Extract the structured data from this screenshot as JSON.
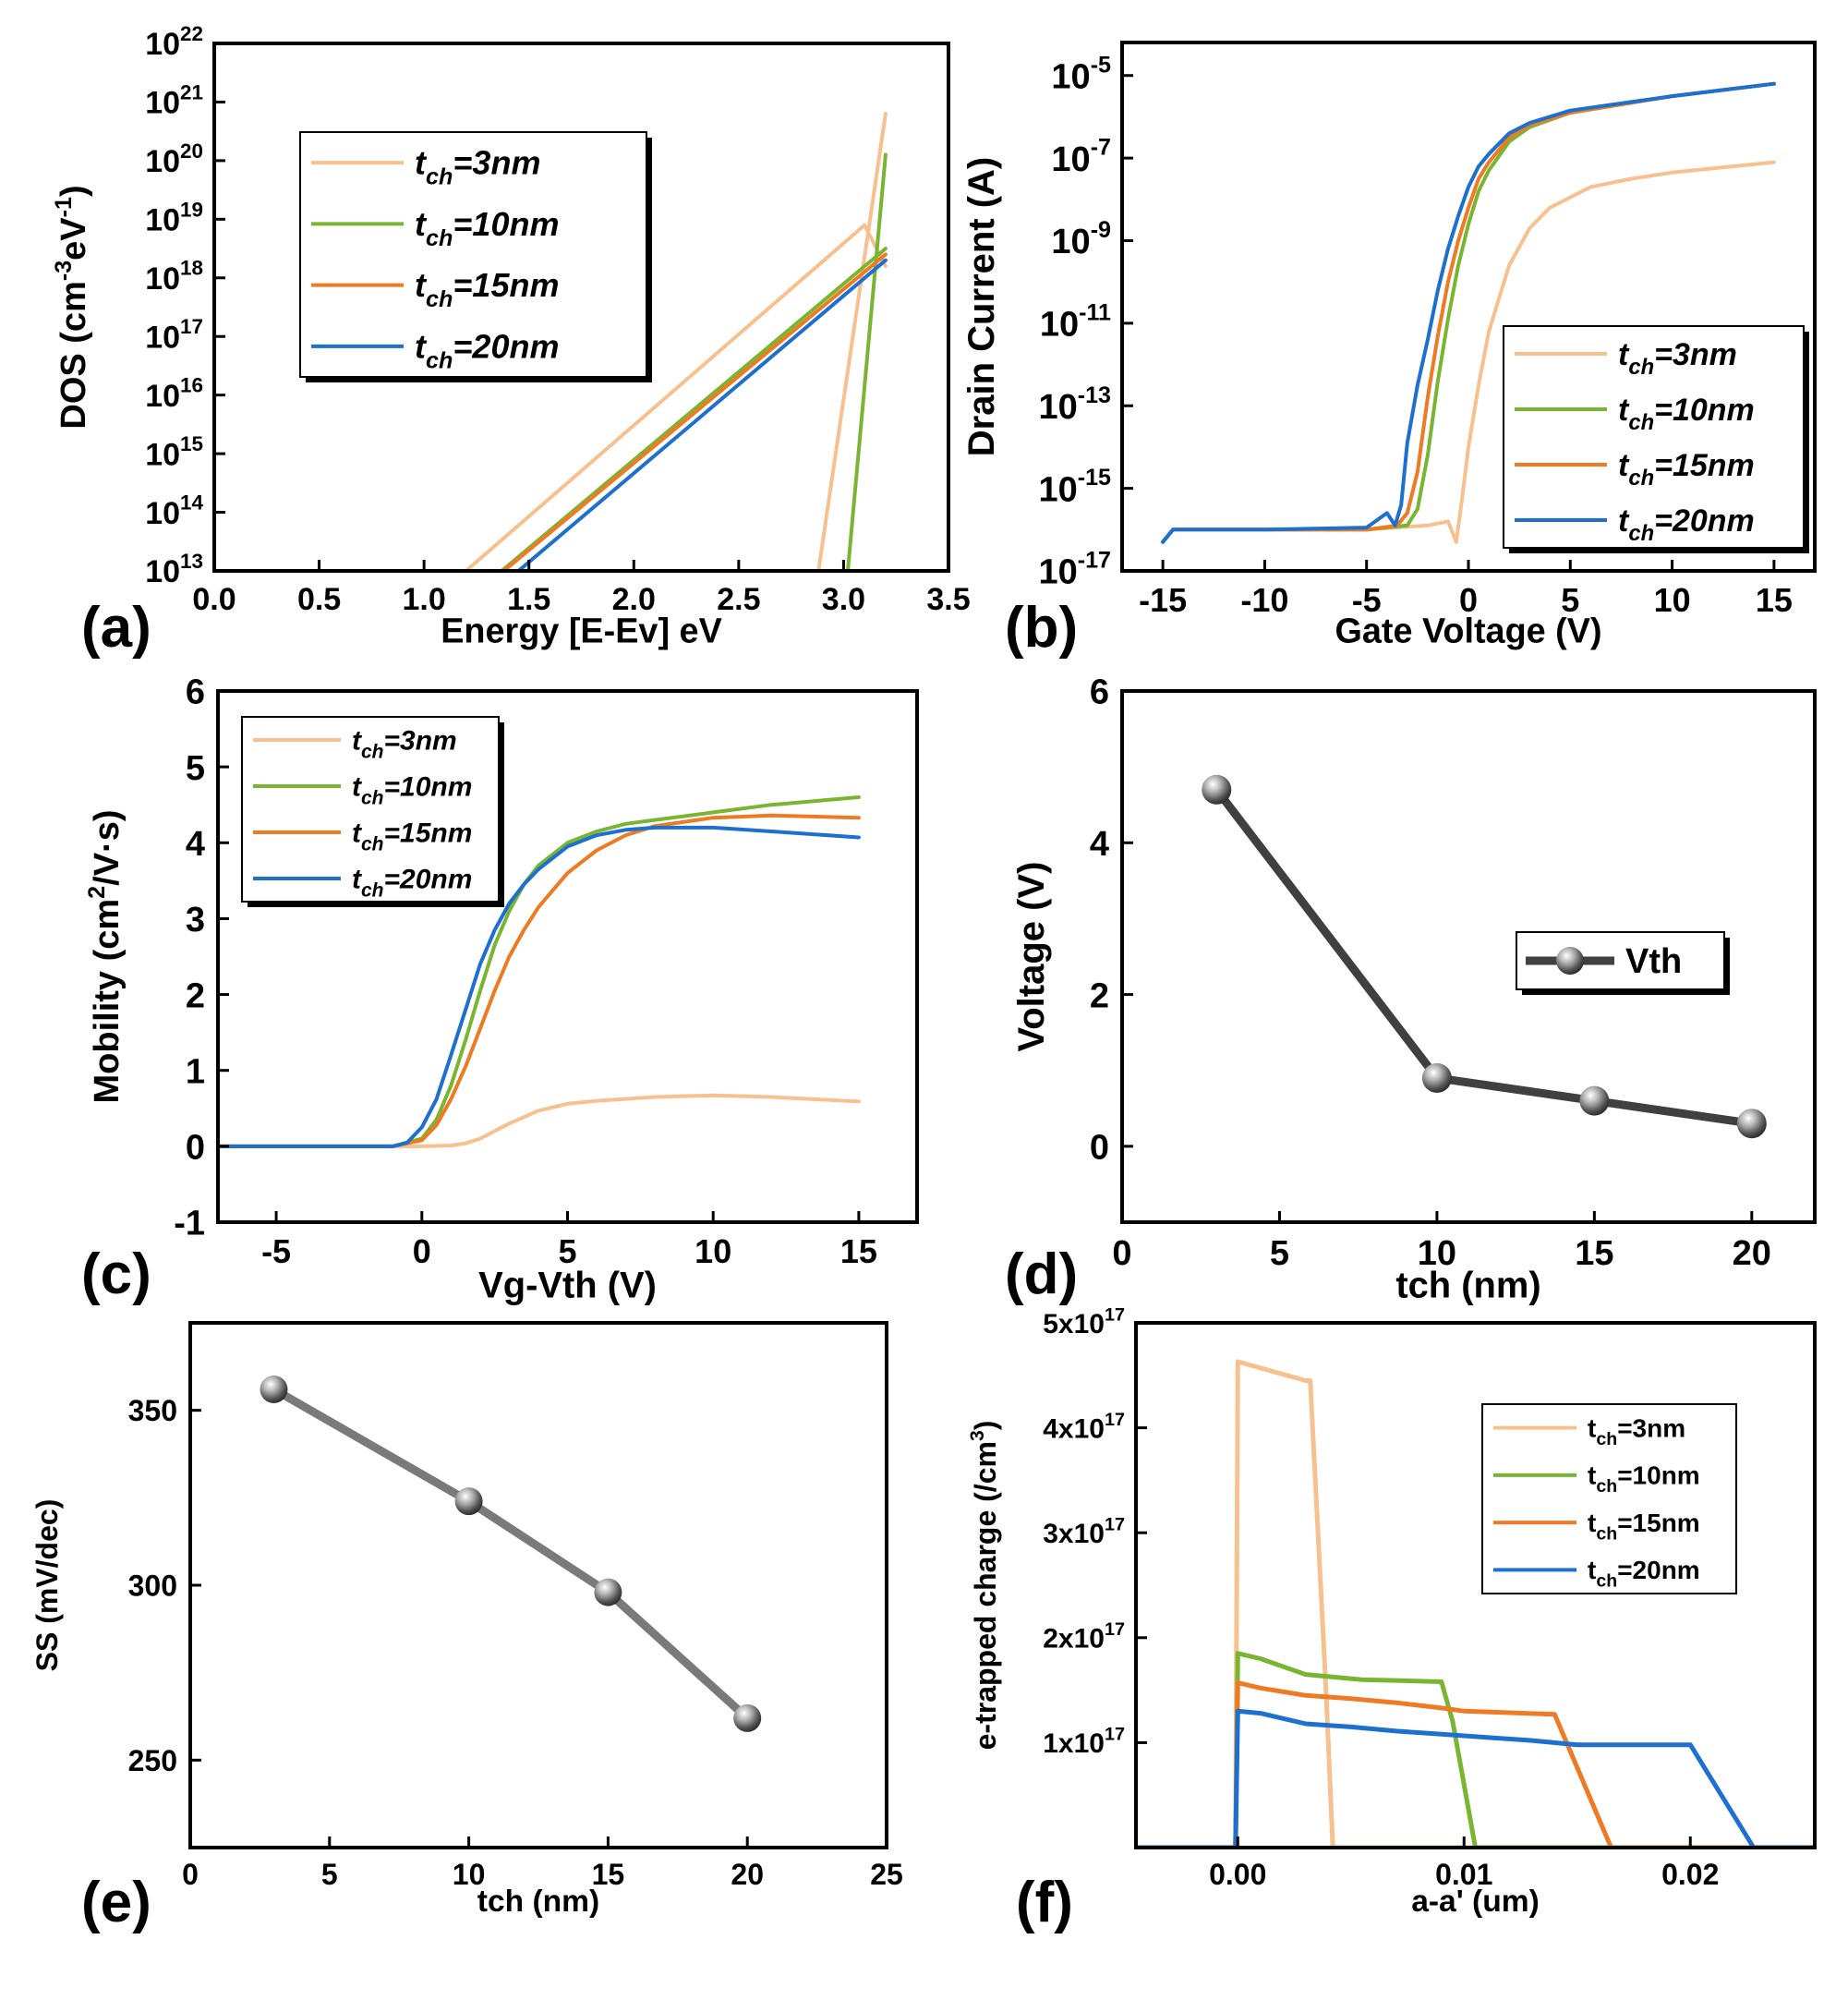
{
  "colors": {
    "t3": "#F7C08F",
    "t10": "#7AB531",
    "t15": "#EE7A24",
    "t20": "#1D6FD0",
    "marker_line_d": "#404040",
    "marker_line_e": "#7A7A7A"
  },
  "chart_data": [
    {
      "id": "a",
      "type": "line",
      "panel_label": "(a)",
      "xlabel": "Energy [E-Ev] eV",
      "ylabel": "DOS (cm-3eV-1)",
      "ylabel_parts": {
        "base": "DOS (cm",
        "e1": "-3",
        "mid": "eV",
        "e2": "-1",
        "end": ")"
      },
      "xlim": [
        0.0,
        3.5
      ],
      "ylim_log10": [
        13,
        22
      ],
      "yscale": "log",
      "xticks": [
        "0.0",
        "0.5",
        "1.0",
        "1.5",
        "2.0",
        "2.5",
        "3.0",
        "3.5"
      ],
      "yticks": [
        {
          "base": "10",
          "exp": "13"
        },
        {
          "base": "10",
          "exp": "14"
        },
        {
          "base": "10",
          "exp": "15"
        },
        {
          "base": "10",
          "exp": "16"
        },
        {
          "base": "10",
          "exp": "17"
        },
        {
          "base": "10",
          "exp": "18"
        },
        {
          "base": "10",
          "exp": "19"
        },
        {
          "base": "10",
          "exp": "20"
        },
        {
          "base": "10",
          "exp": "21"
        },
        {
          "base": "10",
          "exp": "22"
        }
      ],
      "legend": [
        {
          "key": "t3",
          "main": "t",
          "sub": "ch",
          "rest": "=3nm"
        },
        {
          "key": "t10",
          "main": "t",
          "sub": "ch",
          "rest": "=10nm"
        },
        {
          "key": "t15",
          "main": "t",
          "sub": "ch",
          "rest": "=15nm"
        },
        {
          "key": "t20",
          "main": "t",
          "sub": "ch",
          "rest": "=20nm"
        }
      ],
      "series": [
        {
          "name": "tch=3nm tail",
          "key": "t3",
          "x": [
            1.2,
            3.1,
            3.2
          ],
          "y": [
            13,
            18.9,
            18.2
          ]
        },
        {
          "name": "tch=3nm band",
          "key": "t3",
          "x": [
            2.88,
            3.2
          ],
          "y": [
            13,
            20.8
          ]
        },
        {
          "name": "tch=10nm tail",
          "key": "t10",
          "x": [
            1.37,
            3.2
          ],
          "y": [
            13,
            18.5
          ]
        },
        {
          "name": "tch=10nm band",
          "key": "t10",
          "x": [
            3.02,
            3.2
          ],
          "y": [
            13,
            20.1
          ]
        },
        {
          "name": "tch=15nm",
          "key": "t15",
          "x": [
            1.38,
            3.2
          ],
          "y": [
            13,
            18.4
          ]
        },
        {
          "name": "tch=20nm",
          "key": "t20",
          "x": [
            1.45,
            3.2
          ],
          "y": [
            13,
            18.3
          ]
        }
      ]
    },
    {
      "id": "b",
      "type": "line",
      "panel_label": "(b)",
      "xlabel": "Gate Voltage (V)",
      "ylabel": "Drain Current (A)",
      "xlim": [
        -17,
        17
      ],
      "ylim_log10": [
        -17,
        -4.2
      ],
      "yscale": "log",
      "xticks": [
        "-15",
        "-10",
        "-5",
        "0",
        "5",
        "10",
        "15"
      ],
      "xtick_values": [
        -15,
        -10,
        -5,
        0,
        5,
        10,
        15
      ],
      "yticks": [
        {
          "base": "10",
          "exp": "-17"
        },
        {
          "base": "10",
          "exp": "-15"
        },
        {
          "base": "10",
          "exp": "-13"
        },
        {
          "base": "10",
          "exp": "-11"
        },
        {
          "base": "10",
          "exp": "-9"
        },
        {
          "base": "10",
          "exp": "-7"
        },
        {
          "base": "10",
          "exp": "-5"
        }
      ],
      "legend": [
        {
          "key": "t3",
          "main": "t",
          "sub": "ch",
          "rest": "=3nm"
        },
        {
          "key": "t10",
          "main": "t",
          "sub": "ch",
          "rest": "=10nm"
        },
        {
          "key": "t15",
          "main": "t",
          "sub": "ch",
          "rest": "=15nm"
        },
        {
          "key": "t20",
          "main": "t",
          "sub": "ch",
          "rest": "=20nm"
        }
      ],
      "series": [
        {
          "name": "tch=3nm",
          "key": "t3",
          "x": [
            -15,
            -14.5,
            -10,
            -5,
            -2,
            -1,
            -0.6,
            -0.3,
            0,
            0.5,
            1,
            2,
            3,
            4,
            6,
            8,
            10,
            12,
            15
          ],
          "y": [
            -16.3,
            -16,
            -16,
            -16,
            -15.9,
            -15.8,
            -16.3,
            -15.2,
            -14,
            -12.5,
            -11.2,
            -9.6,
            -8.7,
            -8.2,
            -7.7,
            -7.5,
            -7.35,
            -7.25,
            -7.1
          ]
        },
        {
          "name": "tch=10nm",
          "key": "t10",
          "x": [
            -15,
            -14.5,
            -10,
            -5,
            -3,
            -2.5,
            -2,
            -1.5,
            -1,
            -0.5,
            0,
            0.5,
            1,
            2,
            3,
            5,
            10,
            15
          ],
          "y": [
            -16.3,
            -16,
            -16,
            -16,
            -15.9,
            -15.5,
            -14.2,
            -12.4,
            -10.9,
            -9.6,
            -8.6,
            -7.8,
            -7.3,
            -6.6,
            -6.25,
            -5.9,
            -5.5,
            -5.2
          ]
        },
        {
          "name": "tch=15nm",
          "key": "t15",
          "x": [
            -15,
            -14.5,
            -10,
            -5,
            -3.5,
            -3,
            -2.5,
            -2,
            -1.5,
            -1,
            -0.5,
            0,
            0.5,
            1,
            2,
            3,
            5,
            10,
            15
          ],
          "y": [
            -16.3,
            -16,
            -16,
            -16,
            -15.9,
            -15.6,
            -14.6,
            -12.8,
            -11.3,
            -10,
            -9,
            -8.2,
            -7.5,
            -7.1,
            -6.5,
            -6.2,
            -5.9,
            -5.5,
            -5.2
          ]
        },
        {
          "name": "tch=20nm",
          "key": "t20",
          "x": [
            -15,
            -14.5,
            -10,
            -5,
            -4,
            -3.6,
            -3.3,
            -3,
            -2.5,
            -2,
            -1.5,
            -1,
            -0.5,
            0,
            0.5,
            1,
            2,
            3,
            5,
            10,
            15
          ],
          "y": [
            -16.3,
            -16,
            -16,
            -15.95,
            -15.6,
            -15.9,
            -15.4,
            -13.9,
            -12.5,
            -11.4,
            -10.2,
            -9.2,
            -8.4,
            -7.7,
            -7.2,
            -6.9,
            -6.4,
            -6.15,
            -5.85,
            -5.5,
            -5.2
          ]
        }
      ]
    },
    {
      "id": "c",
      "type": "line",
      "panel_label": "(c)",
      "xlabel": "Vg-Vth (V)",
      "ylabel": "Mobility (cm2/V·s)",
      "ylabel_parts": {
        "base": "Mobility (cm",
        "e1": "2",
        "end": "/V·s)"
      },
      "xlim": [
        -7,
        17
      ],
      "ylim": [
        -1,
        6
      ],
      "xticks": [
        "-5",
        "0",
        "5",
        "10",
        "15"
      ],
      "xtick_values": [
        -5,
        0,
        5,
        10,
        15
      ],
      "yticks": [
        "-1",
        "0",
        "1",
        "2",
        "3",
        "4",
        "5",
        "6"
      ],
      "ytick_values": [
        -1,
        0,
        1,
        2,
        3,
        4,
        5,
        6
      ],
      "legend": [
        {
          "key": "t3",
          "main": "t",
          "sub": "ch",
          "rest": "=3nm"
        },
        {
          "key": "t10",
          "main": "t",
          "sub": "ch",
          "rest": "=10nm"
        },
        {
          "key": "t15",
          "main": "t",
          "sub": "ch",
          "rest": "=15nm"
        },
        {
          "key": "t20",
          "main": "t",
          "sub": "ch",
          "rest": "=20nm"
        }
      ],
      "series": [
        {
          "name": "tch=3nm",
          "key": "t3",
          "x": [
            -7,
            0,
            1,
            1.5,
            2,
            3,
            4,
            5,
            6,
            8,
            10,
            12,
            15
          ],
          "y": [
            0,
            0,
            0.01,
            0.04,
            0.1,
            0.3,
            0.47,
            0.56,
            0.6,
            0.65,
            0.67,
            0.65,
            0.59
          ]
        },
        {
          "name": "tch=10nm",
          "key": "t10",
          "x": [
            -7,
            -1,
            0,
            0.5,
            1,
            1.5,
            2,
            2.5,
            3,
            3.5,
            4,
            5,
            6,
            7,
            8,
            10,
            12,
            15
          ],
          "y": [
            0,
            0,
            0.1,
            0.35,
            0.8,
            1.4,
            2.05,
            2.65,
            3.1,
            3.45,
            3.7,
            4.0,
            4.15,
            4.25,
            4.3,
            4.4,
            4.5,
            4.6
          ]
        },
        {
          "name": "tch=15nm",
          "key": "t15",
          "x": [
            -7,
            -1,
            0,
            0.5,
            1,
            1.5,
            2,
            2.5,
            3,
            3.5,
            4,
            5,
            6,
            7,
            8,
            10,
            12,
            15
          ],
          "y": [
            0,
            0,
            0.08,
            0.28,
            0.62,
            1.05,
            1.55,
            2.05,
            2.5,
            2.85,
            3.15,
            3.6,
            3.9,
            4.1,
            4.22,
            4.33,
            4.36,
            4.33
          ]
        },
        {
          "name": "tch=20nm",
          "key": "t20",
          "x": [
            -7,
            -1,
            -0.5,
            0,
            0.5,
            1,
            1.5,
            2,
            2.5,
            3,
            3.5,
            4,
            5,
            6,
            7,
            8,
            10,
            12,
            15
          ],
          "y": [
            0,
            0,
            0.05,
            0.25,
            0.62,
            1.2,
            1.8,
            2.4,
            2.85,
            3.2,
            3.45,
            3.65,
            3.95,
            4.1,
            4.17,
            4.2,
            4.2,
            4.15,
            4.07
          ]
        }
      ]
    },
    {
      "id": "d",
      "type": "line",
      "panel_label": "(d)",
      "xlabel": "tch (nm)",
      "ylabel": "Voltage (V)",
      "xlim": [
        0,
        22
      ],
      "ylim": [
        -1,
        6
      ],
      "xticks": [
        "0",
        "5",
        "10",
        "15",
        "20"
      ],
      "xtick_values": [
        0,
        5,
        10,
        15,
        20
      ],
      "yticks": [
        "0",
        "2",
        "4",
        "6"
      ],
      "ytick_values": [
        0,
        2,
        4,
        6
      ],
      "legend": [
        {
          "key": "vth",
          "main": "Vth",
          "sub": "",
          "rest": ""
        }
      ],
      "series": [
        {
          "name": "Vth",
          "x": [
            3,
            10,
            15,
            20
          ],
          "y": [
            4.7,
            0.9,
            0.6,
            0.3
          ]
        }
      ]
    },
    {
      "id": "e",
      "type": "line",
      "panel_label": "(e)",
      "xlabel": "tch (nm)",
      "ylabel": "SS (mV/dec)",
      "xlim": [
        0,
        25
      ],
      "ylim": [
        225,
        375
      ],
      "xticks": [
        "0",
        "5",
        "10",
        "15",
        "20",
        "25"
      ],
      "xtick_values": [
        0,
        5,
        10,
        15,
        20,
        25
      ],
      "yticks": [
        "250",
        "300",
        "350"
      ],
      "ytick_values": [
        250,
        300,
        350
      ],
      "series": [
        {
          "name": "SS",
          "x": [
            3,
            10,
            15,
            20
          ],
          "y": [
            356,
            324,
            298,
            262
          ]
        }
      ]
    },
    {
      "id": "f",
      "type": "line",
      "panel_label": "(f)",
      "xlabel": "a-a' (um)",
      "ylabel": "e-trapped charge (/cm3)",
      "ylabel_parts": {
        "base": "e-trapped charge (/cm",
        "e1": "3",
        "end": ")"
      },
      "xlim": [
        -0.0045,
        0.0255
      ],
      "ylim": [
        0,
        5e+17
      ],
      "xticks": [
        "0.00",
        "0.01",
        "0.02"
      ],
      "xtick_values": [
        0.0,
        0.01,
        0.02
      ],
      "yticks": [
        {
          "base": "1x10",
          "exp": "17"
        },
        {
          "base": "2x10",
          "exp": "17"
        },
        {
          "base": "3x10",
          "exp": "17"
        },
        {
          "base": "4x10",
          "exp": "17"
        },
        {
          "base": "5x10",
          "exp": "17"
        }
      ],
      "ytick_values": [
        1e+17,
        2e+17,
        3e+17,
        4e+17,
        5e+17
      ],
      "legend": [
        {
          "key": "t3",
          "main": "t",
          "sub": "ch",
          "rest": "=3nm"
        },
        {
          "key": "t10",
          "main": "t",
          "sub": "ch",
          "rest": "=10nm"
        },
        {
          "key": "t15",
          "main": "t",
          "sub": "ch",
          "rest": "=15nm"
        },
        {
          "key": "t20",
          "main": "t",
          "sub": "ch",
          "rest": "=20nm"
        }
      ],
      "series": [
        {
          "name": "tch=3nm",
          "key": "t3",
          "x": [
            -0.0045,
            -0.0001,
            0,
            0.003,
            0.0032,
            0.0039,
            0.0042,
            0.0255
          ],
          "y": [
            0,
            0,
            4.63e+17,
            4.45e+17,
            4.45e+17,
            1.5e+17,
            0,
            0
          ]
        },
        {
          "name": "tch=10nm",
          "key": "t10",
          "x": [
            -0.0045,
            -0.0001,
            0,
            0.001,
            0.003,
            0.0045,
            0.0055,
            0.009,
            0.0095,
            0.0105,
            0.0255
          ],
          "y": [
            0,
            0,
            1.85e+17,
            1.8e+17,
            1.65e+17,
            1.62e+17,
            1.6e+17,
            1.58e+17,
            1.2e+17,
            0,
            0
          ]
        },
        {
          "name": "tch=15nm",
          "key": "t15",
          "x": [
            -0.0045,
            -0.0001,
            0,
            0.001,
            0.003,
            0.005,
            0.007,
            0.009,
            0.01,
            0.014,
            0.0165,
            0.0255
          ],
          "y": [
            0,
            0,
            1.57e+17,
            1.52e+17,
            1.45e+17,
            1.42e+17,
            1.38e+17,
            1.33e+17,
            1.3e+17,
            1.27e+17,
            0,
            0
          ]
        },
        {
          "name": "tch=20nm",
          "key": "t20",
          "x": [
            -0.0045,
            -0.0001,
            0,
            0.001,
            0.003,
            0.005,
            0.007,
            0.009,
            0.011,
            0.013,
            0.015,
            0.02,
            0.0228,
            0.0255
          ],
          "y": [
            0,
            0,
            1.3e+17,
            1.28e+17,
            1.18e+17,
            1.15e+17,
            1.11e+17,
            1.08e+17,
            1.05e+17,
            1.02e+17,
            9.8e+16,
            9.8e+16,
            0,
            0
          ]
        }
      ]
    }
  ]
}
